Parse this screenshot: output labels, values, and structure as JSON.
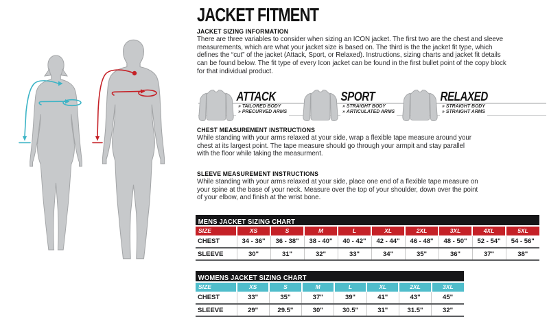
{
  "page": {
    "title": "JACKET FITMENT"
  },
  "ui": {
    "bullet_marker": "»"
  },
  "colors": {
    "mens_header": "#c52127",
    "womens_header": "#4fbdcb",
    "female_arrows": "#3db4c6",
    "male_arrows": "#c52127",
    "silhouette": "#c7c9cb",
    "title_bar": "#161618"
  },
  "sections": {
    "sizing_info": {
      "heading": "JACKET SIZING INFORMATION",
      "lines": [
        "There are three variables to consider when sizing an ICON jacket. The  first two are the chest and sleeve",
        "measurements, which are what your jacket size is based on. The third is the the jacket fit type, which",
        "defines the “cut” of the jacket (Attack, Sport, or Relaxed). Instructions, sizing charts and jacket fit details",
        "can be found below. The fit type of every Icon jacket can be found in the first bullet point of the copy block",
        "for that individual product."
      ]
    },
    "fit_types": [
      {
        "name": "ATTACK",
        "features": [
          "TAILORED BODY",
          "PRECURVED ARMS"
        ]
      },
      {
        "name": "SPORT",
        "features": [
          "STRAIGHT BODY",
          "ARTICULATED ARMS"
        ]
      },
      {
        "name": "RELAXED",
        "features": [
          "STRAIGHT BODY",
          "STRAIGHT ARMS"
        ]
      }
    ],
    "chest": {
      "heading": "CHEST MEASUREMENT INSTRUCTIONS",
      "lines": [
        "While standing with your arms relaxed at your side, wrap a flexible tape measure around your",
        "chest at its largest point. The tape measure should go through your armpit and stay parallel",
        "with the floor while taking the measurment."
      ]
    },
    "sleeve": {
      "heading": "SLEEVE MEASUREMENT INSTRUCTIONS",
      "lines": [
        "While standing with your arms relaxed at your side, place one end of a flexible tape measure on",
        "your spine at the base of your neck. Measure over the top of your shoulder, down over the point",
        "of your elbow, and finish at the wrist bone."
      ]
    }
  },
  "charts": {
    "mens": {
      "title": "MENS JACKET SIZING CHART",
      "columns": [
        "SIZE",
        "XS",
        "S",
        "M",
        "L",
        "XL",
        "2XL",
        "3XL",
        "4XL",
        "5XL"
      ],
      "rows": [
        {
          "label": "CHEST",
          "values": [
            "34 - 36\"",
            "36 - 38\"",
            "38 - 40\"",
            "40 - 42\"",
            "42 - 44\"",
            "46 - 48\"",
            "48 - 50\"",
            "52 - 54\"",
            "54 - 56\""
          ]
        },
        {
          "label": "SLEEVE",
          "values": [
            "30\"",
            "31\"",
            "32\"",
            "33\"",
            "34\"",
            "35\"",
            "36\"",
            "37\"",
            "38\""
          ]
        }
      ]
    },
    "womens": {
      "title": "WOMENS JACKET SIZING CHART",
      "columns": [
        "SIZE",
        "XS",
        "S",
        "M",
        "L",
        "XL",
        "2XL",
        "3XL"
      ],
      "rows": [
        {
          "label": "CHEST",
          "values": [
            "33\"",
            "35\"",
            "37\"",
            "39\"",
            "41\"",
            "43\"",
            "45\""
          ]
        },
        {
          "label": "SLEEVE",
          "values": [
            "29\"",
            "29.5\"",
            "30\"",
            "30.5\"",
            "31\"",
            "31.5\"",
            "32\""
          ]
        }
      ]
    }
  }
}
